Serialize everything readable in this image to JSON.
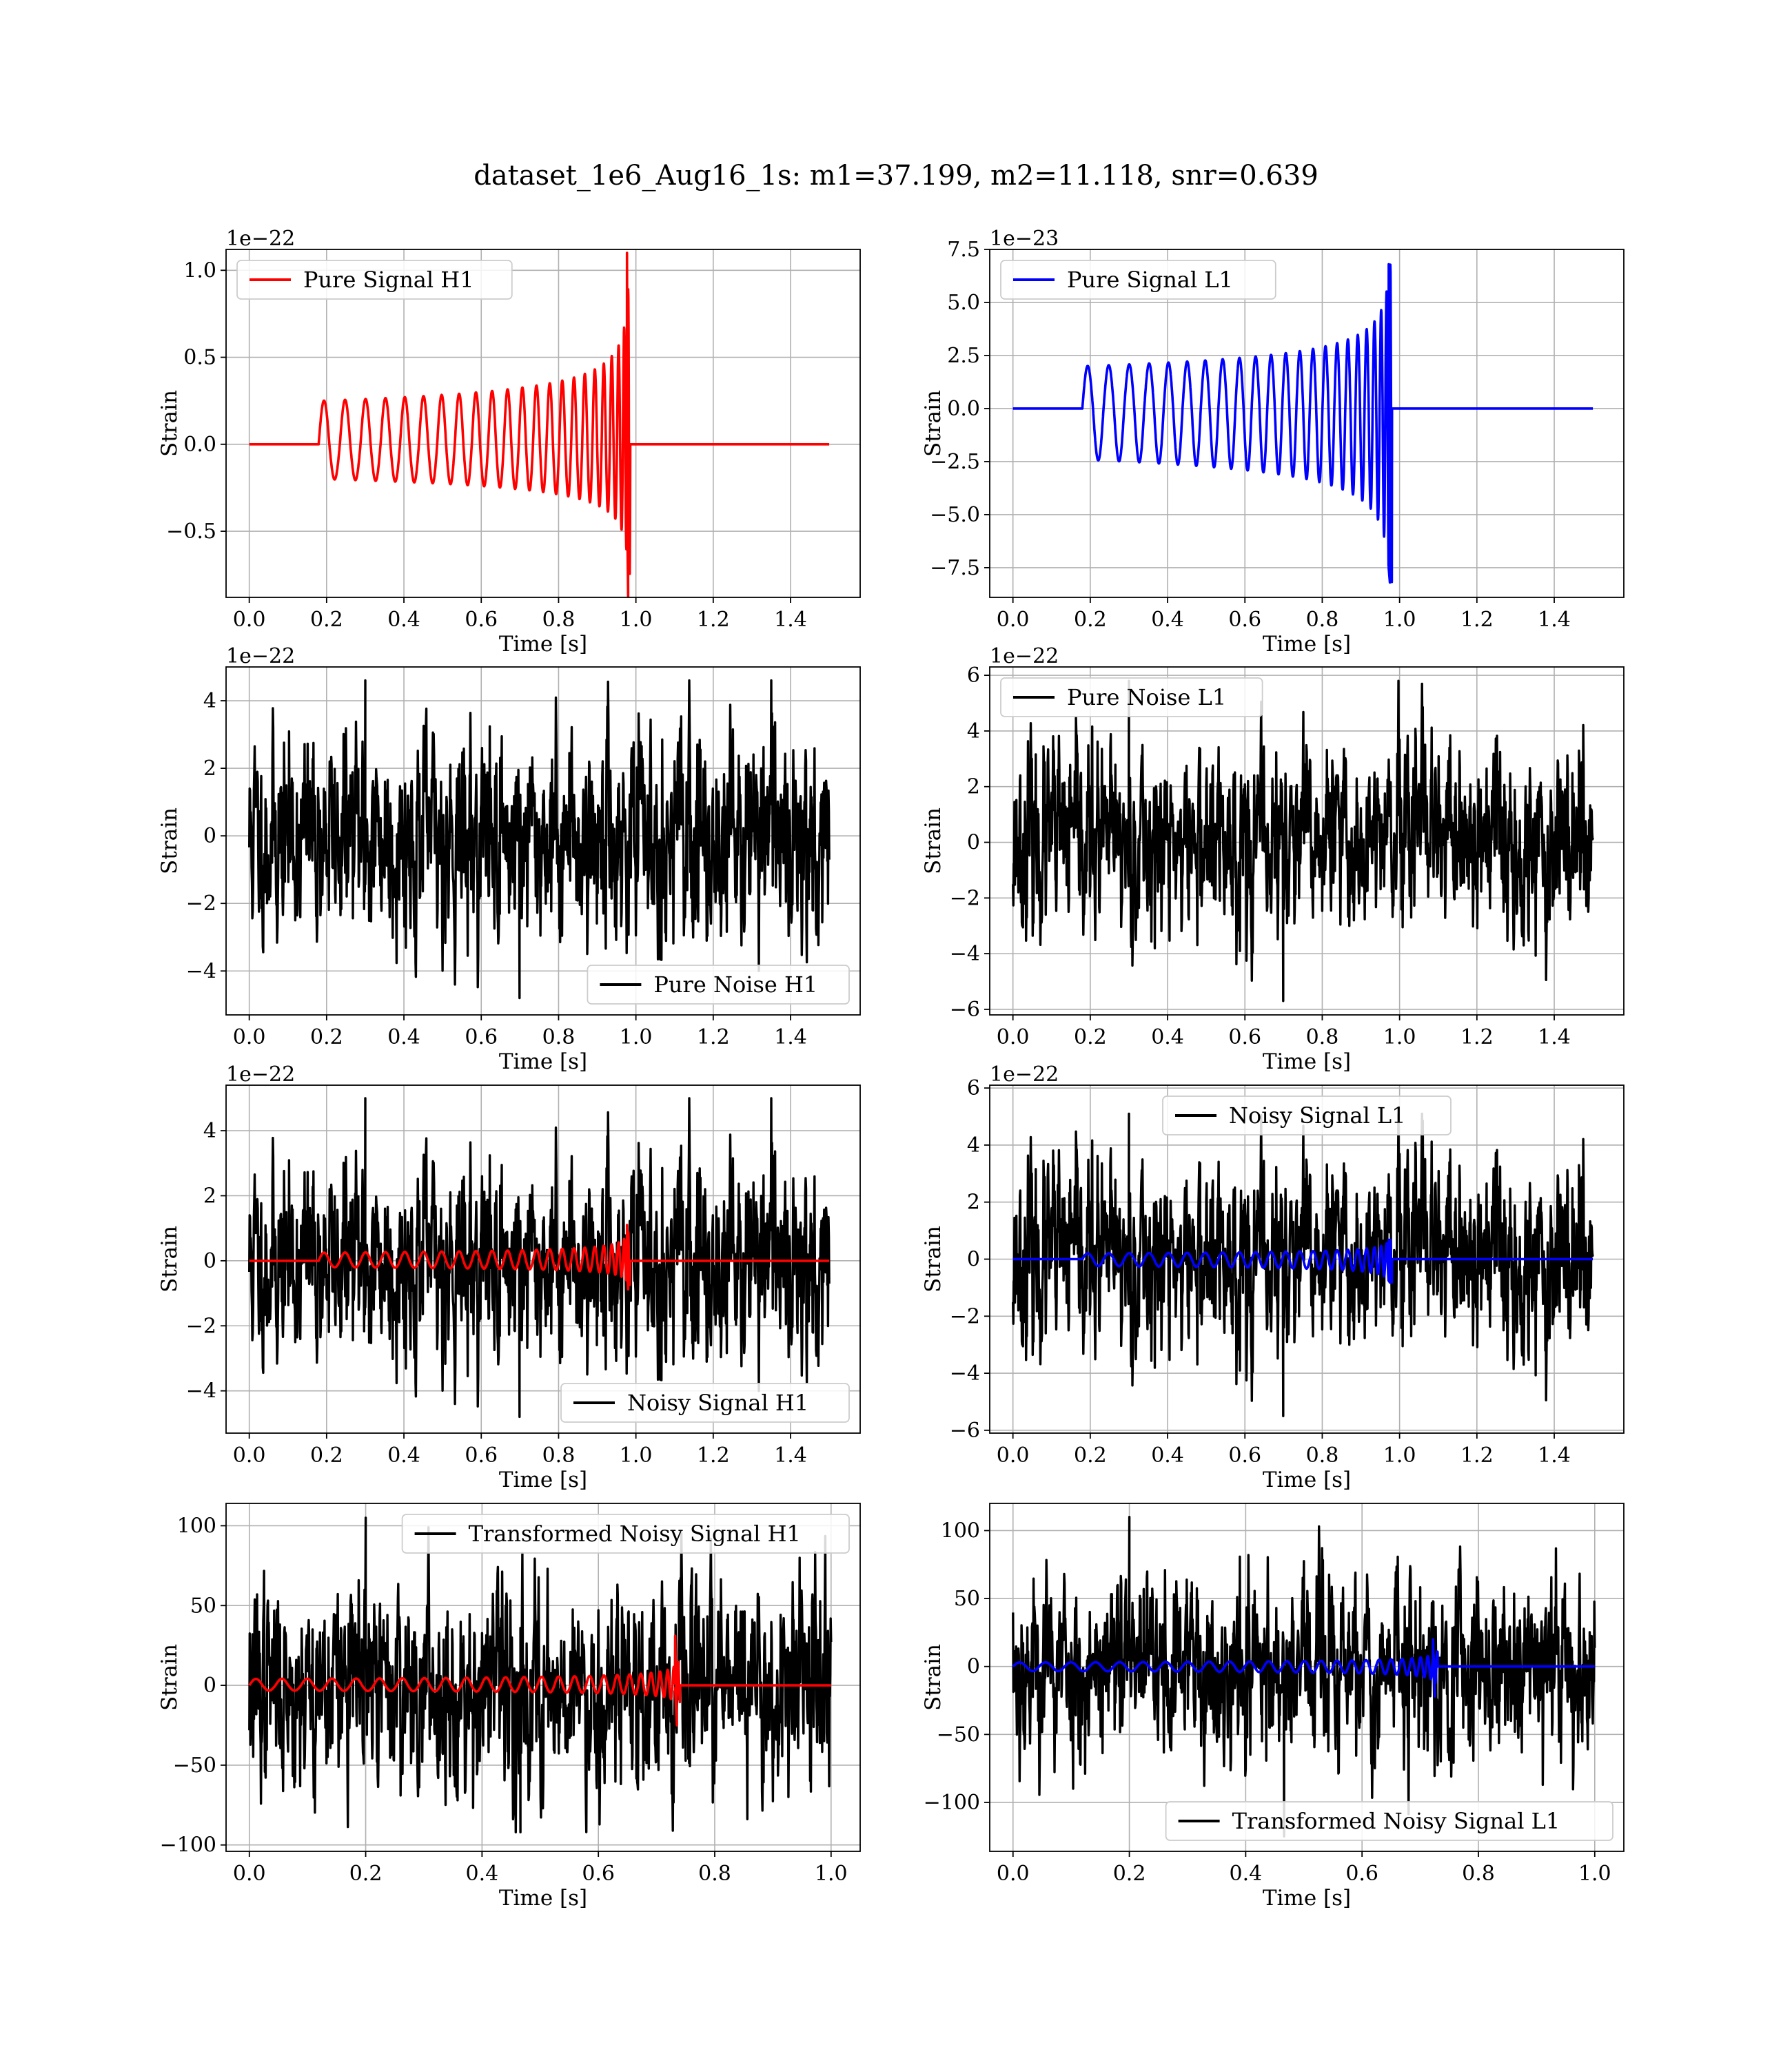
{
  "figure": {
    "title": "dataset_1e6_Aug16_1s: m1=37.199, m2=11.118, snr=0.639"
  },
  "colors": {
    "h1_signal": "#ff0000",
    "l1_signal": "#0000ff",
    "noise": "#000000",
    "grid": "#b0b0b0"
  },
  "chart_data": [
    {
      "type": "line",
      "id": "pure_signal_h1",
      "legend": [
        "Pure Signal H1"
      ],
      "legend_loc": "upper left",
      "offset_text": "1e−22",
      "xlabel": "Time [s]",
      "ylabel": "Strain",
      "xlim": [
        -0.06,
        1.58
      ],
      "ylim": [
        -0.88,
        1.12
      ],
      "xticks": [
        0.0,
        0.2,
        0.4,
        0.6,
        0.8,
        1.0,
        1.2,
        1.4
      ],
      "xtick_labels": [
        "0.0",
        "0.2",
        "0.4",
        "0.6",
        "0.8",
        "1.0",
        "1.2",
        "1.4"
      ],
      "yticks": [
        -0.5,
        0.0,
        0.5,
        1.0
      ],
      "ytick_labels": [
        "−0.5",
        "0.0",
        "0.5",
        "1.0"
      ],
      "grid": true,
      "series": [
        {
          "name": "Pure Signal H1",
          "kind": "chirp",
          "color": "#ff0000",
          "t_start": 0.0,
          "t_end": 1.5,
          "t0": 0.18,
          "tc": 0.985,
          "amp0": 0.25,
          "amp_peak": 1.1,
          "amp_neg_peak": -0.88,
          "f0": 18,
          "f_max": 150,
          "flat_after": true
        }
      ]
    },
    {
      "type": "line",
      "id": "pure_signal_l1",
      "legend": [
        "Pure Signal L1"
      ],
      "legend_loc": "upper left",
      "offset_text": "1e−23",
      "xlabel": "Time [s]",
      "ylabel": "Strain",
      "xlim": [
        -0.06,
        1.58
      ],
      "ylim": [
        -8.9,
        7.5
      ],
      "xticks": [
        0.0,
        0.2,
        0.4,
        0.6,
        0.8,
        1.0,
        1.2,
        1.4
      ],
      "xtick_labels": [
        "0.0",
        "0.2",
        "0.4",
        "0.6",
        "0.8",
        "1.0",
        "1.2",
        "1.4"
      ],
      "yticks": [
        -7.5,
        -5.0,
        -2.5,
        0.0,
        2.5,
        5.0,
        7.5
      ],
      "ytick_labels": [
        "−7.5",
        "−5.0",
        "−2.5",
        "0.0",
        "2.5",
        "5.0",
        "7.5"
      ],
      "grid": true,
      "series": [
        {
          "name": "Pure Signal L1",
          "kind": "chirp",
          "color": "#0000ff",
          "t_start": 0.0,
          "t_end": 1.5,
          "t0": 0.18,
          "tc": 0.98,
          "amp0": 2.0,
          "amp_peak": 6.8,
          "amp_neg_peak": -8.2,
          "f0": 18,
          "f_max": 150,
          "flat_after": true
        }
      ]
    },
    {
      "type": "line",
      "id": "pure_noise_h1",
      "legend": [
        "Pure Noise H1"
      ],
      "legend_loc": "lower right",
      "offset_text": "1e−22",
      "xlabel": "Time [s]",
      "ylabel": "Strain",
      "xlim": [
        -0.06,
        1.58
      ],
      "ylim": [
        -5.3,
        5.0
      ],
      "xticks": [
        0.0,
        0.2,
        0.4,
        0.6,
        0.8,
        1.0,
        1.2,
        1.4
      ],
      "xtick_labels": [
        "0.0",
        "0.2",
        "0.4",
        "0.6",
        "0.8",
        "1.0",
        "1.2",
        "1.4"
      ],
      "yticks": [
        -4,
        -2,
        0,
        2,
        4
      ],
      "ytick_labels": [
        "−4",
        "−2",
        "0",
        "2",
        "4"
      ],
      "grid": true,
      "series": [
        {
          "name": "Pure Noise H1",
          "kind": "noise",
          "color": "#000000",
          "t_start": 0.0,
          "t_end": 1.5,
          "sigma": 1.45,
          "max": 4.6,
          "min": -4.8,
          "seed": 11
        }
      ]
    },
    {
      "type": "line",
      "id": "pure_noise_l1",
      "legend": [
        "Pure Noise L1"
      ],
      "legend_loc": "upper left",
      "offset_text": "1e−22",
      "xlabel": "Time [s]",
      "ylabel": "Strain",
      "xlim": [
        -0.06,
        1.58
      ],
      "ylim": [
        -6.2,
        6.3
      ],
      "xticks": [
        0.0,
        0.2,
        0.4,
        0.6,
        0.8,
        1.0,
        1.2,
        1.4
      ],
      "xtick_labels": [
        "0.0",
        "0.2",
        "0.4",
        "0.6",
        "0.8",
        "1.0",
        "1.2",
        "1.4"
      ],
      "yticks": [
        -6,
        -4,
        -2,
        0,
        2,
        4,
        6
      ],
      "ytick_labels": [
        "−6",
        "−4",
        "−2",
        "0",
        "2",
        "4",
        "6"
      ],
      "grid": true,
      "series": [
        {
          "name": "Pure Noise L1",
          "kind": "noise",
          "color": "#000000",
          "t_start": 0.0,
          "t_end": 1.5,
          "sigma": 1.6,
          "max": 5.8,
          "min": -5.7,
          "seed": 23
        }
      ]
    },
    {
      "type": "line",
      "id": "noisy_signal_h1",
      "legend": [
        "Noisy Signal H1"
      ],
      "legend_loc": "lower right",
      "offset_text": "1e−22",
      "xlabel": "Time [s]",
      "ylabel": "Strain",
      "xlim": [
        -0.06,
        1.58
      ],
      "ylim": [
        -5.3,
        5.4
      ],
      "xticks": [
        0.0,
        0.2,
        0.4,
        0.6,
        0.8,
        1.0,
        1.2,
        1.4
      ],
      "xtick_labels": [
        "0.0",
        "0.2",
        "0.4",
        "0.6",
        "0.8",
        "1.0",
        "1.2",
        "1.4"
      ],
      "yticks": [
        -4,
        -2,
        0,
        2,
        4
      ],
      "ytick_labels": [
        "−4",
        "−2",
        "0",
        "2",
        "4"
      ],
      "grid": true,
      "series": [
        {
          "name": "Noisy Signal H1",
          "kind": "noise",
          "color": "#000000",
          "t_start": 0.0,
          "t_end": 1.5,
          "sigma": 1.45,
          "max": 5.0,
          "min": -4.8,
          "seed": 11
        },
        {
          "kind": "chirp",
          "color": "#ff0000",
          "t_start": 0.0,
          "t_end": 1.5,
          "t0": 0.18,
          "tc": 0.985,
          "amp0": 0.25,
          "amp_peak": 1.1,
          "amp_neg_peak": -0.88,
          "f0": 18,
          "f_max": 150,
          "flat_after": true
        }
      ]
    },
    {
      "type": "line",
      "id": "noisy_signal_l1",
      "legend": [
        "Noisy Signal L1"
      ],
      "legend_loc": "upper center",
      "offset_text": "1e−22",
      "xlabel": "Time [s]",
      "ylabel": "Strain",
      "xlim": [
        -0.06,
        1.58
      ],
      "ylim": [
        -6.1,
        6.1
      ],
      "xticks": [
        0.0,
        0.2,
        0.4,
        0.6,
        0.8,
        1.0,
        1.2,
        1.4
      ],
      "xtick_labels": [
        "0.0",
        "0.2",
        "0.4",
        "0.6",
        "0.8",
        "1.0",
        "1.2",
        "1.4"
      ],
      "yticks": [
        -6,
        -4,
        -2,
        0,
        2,
        4,
        6
      ],
      "ytick_labels": [
        "−6",
        "−4",
        "−2",
        "0",
        "2",
        "4",
        "6"
      ],
      "grid": true,
      "series": [
        {
          "name": "Noisy Signal L1",
          "kind": "noise",
          "color": "#000000",
          "t_start": 0.0,
          "t_end": 1.5,
          "sigma": 1.6,
          "max": 5.1,
          "min": -5.5,
          "seed": 23
        },
        {
          "kind": "chirp",
          "color": "#0000ff",
          "t_start": 0.0,
          "t_end": 1.5,
          "t0": 0.18,
          "tc": 0.98,
          "amp0": 0.2,
          "amp_peak": 0.68,
          "amp_neg_peak": -0.82,
          "f0": 18,
          "f_max": 150,
          "flat_after": true
        }
      ]
    },
    {
      "type": "line",
      "id": "transformed_noisy_signal_h1",
      "legend": [
        "Transformed Noisy Signal H1"
      ],
      "legend_loc": "upper right",
      "offset_text": "",
      "xlabel": "Time [s]",
      "ylabel": "Strain",
      "xlim": [
        -0.04,
        1.05
      ],
      "ylim": [
        -104,
        114
      ],
      "xticks": [
        0.0,
        0.2,
        0.4,
        0.6,
        0.8,
        1.0
      ],
      "xtick_labels": [
        "0.0",
        "0.2",
        "0.4",
        "0.6",
        "0.8",
        "1.0"
      ],
      "yticks": [
        -100,
        -50,
        0,
        50,
        100
      ],
      "ytick_labels": [
        "−100",
        "−50",
        "0",
        "50",
        "100"
      ],
      "grid": true,
      "series": [
        {
          "name": "Transformed Noisy Signal H1",
          "kind": "noise",
          "color": "#000000",
          "t_start": 0.0,
          "t_end": 1.0,
          "sigma": 30,
          "max": 105,
          "min": -92,
          "seed": 37
        },
        {
          "kind": "chirp",
          "color": "#ff0000",
          "t_start": 0.0,
          "t_end": 1.0,
          "t0": 0.0,
          "tc": 0.74,
          "amp0": 4,
          "amp_peak": 31,
          "amp_neg_peak": -25,
          "f0": 22,
          "f_max": 150,
          "flat_after": true
        }
      ]
    },
    {
      "type": "line",
      "id": "transformed_noisy_signal_l1",
      "legend": [
        "Transformed Noisy Signal L1"
      ],
      "legend_loc": "lower right",
      "offset_text": "",
      "xlabel": "Time [s]",
      "ylabel": "Strain",
      "xlim": [
        -0.04,
        1.05
      ],
      "ylim": [
        -136,
        120
      ],
      "xticks": [
        0.0,
        0.2,
        0.4,
        0.6,
        0.8,
        1.0
      ],
      "xtick_labels": [
        "0.0",
        "0.2",
        "0.4",
        "0.6",
        "0.8",
        "1.0"
      ],
      "yticks": [
        -100,
        -50,
        0,
        50,
        100
      ],
      "ytick_labels": [
        "−100",
        "−50",
        "0",
        "50",
        "100"
      ],
      "grid": true,
      "series": [
        {
          "name": "Transformed Noisy Signal L1",
          "kind": "noise",
          "color": "#000000",
          "t_start": 0.0,
          "t_end": 1.0,
          "sigma": 33,
          "max": 110,
          "min": -125,
          "seed": 53
        },
        {
          "kind": "chirp",
          "color": "#0000ff",
          "t_start": 0.0,
          "t_end": 1.0,
          "t0": 0.0,
          "tc": 0.73,
          "amp0": 3,
          "amp_peak": 20,
          "amp_neg_peak": -22,
          "f0": 22,
          "f_max": 150,
          "flat_after": true
        }
      ]
    }
  ]
}
